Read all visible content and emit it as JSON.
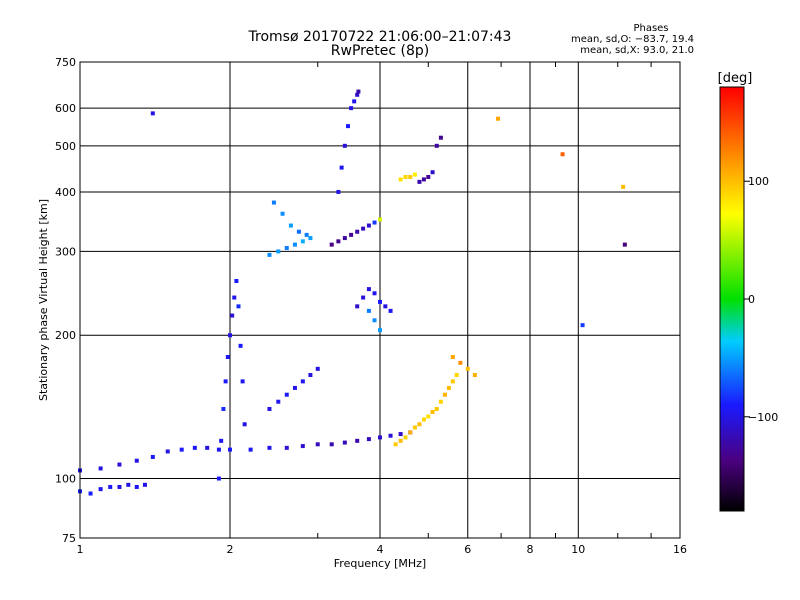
{
  "title_line1": "Tromsø 20170722 21:06:00–21:07:43",
  "title_line2": "RwPretec (8p)",
  "phases": {
    "heading": "Phases",
    "line_o": "mean, sd,O: −83.7, 19.4",
    "line_x": "mean, sd,X:  93.0, 21.0"
  },
  "chart_data": {
    "type": "scatter",
    "xlabel": "Frequency [MHz]",
    "ylabel": "Stationary phase Virtual Height [km]",
    "xscale": "log",
    "yscale": "log",
    "xlim": [
      1,
      16
    ],
    "ylim": [
      75,
      750
    ],
    "xticks": [
      1,
      2,
      4,
      6,
      8,
      10,
      16
    ],
    "xtick_labels": [
      "1",
      "2",
      "4",
      "6",
      "8",
      "10",
      "16"
    ],
    "yticks": [
      75,
      100,
      200,
      300,
      400,
      500,
      600,
      750
    ],
    "ytick_labels": [
      "75",
      "100",
      "200",
      "300",
      "400",
      "500",
      "600",
      "750"
    ],
    "grid": true,
    "colorbar": {
      "label": "[deg]",
      "range": [
        -180,
        180
      ],
      "ticks": [
        100,
        0,
        -100
      ],
      "tick_labels": [
        "100",
        "0",
        "−100"
      ],
      "colormap": "rainbow"
    },
    "series": [
      {
        "x": [
          1.0,
          1.1,
          1.2,
          1.3,
          1.4,
          1.5,
          1.6,
          1.7,
          1.8,
          1.9,
          2.0,
          2.2,
          2.4,
          2.6,
          2.8,
          3.0,
          3.2,
          3.4,
          3.6,
          3.8,
          4.0,
          4.2,
          4.4,
          4.6
        ],
        "y": [
          104,
          105,
          107,
          109,
          111,
          114,
          115,
          116,
          116,
          115,
          115,
          115,
          116,
          116,
          117,
          118,
          118,
          119,
          120,
          121,
          122,
          123,
          124,
          125
        ],
        "phase": [
          -100,
          -100,
          -105,
          -100,
          -95,
          -100,
          -90,
          -95,
          -100,
          -95,
          -90,
          -95,
          -100,
          -105,
          -110,
          -115,
          -120,
          -115,
          -120,
          -115,
          -110,
          -105,
          -110,
          -100
        ]
      },
      {
        "x": [
          1.0,
          1.05,
          1.1,
          1.15,
          1.2,
          1.25,
          1.3,
          1.35
        ],
        "y": [
          94,
          93,
          95,
          96,
          96,
          97,
          96,
          97
        ],
        "phase": [
          -85,
          -90,
          -95,
          -95,
          -100,
          -100,
          -95,
          -100
        ]
      },
      {
        "x": [
          1.9,
          1.92,
          1.94,
          1.96,
          1.98,
          2.0,
          2.02,
          2.04,
          2.06,
          2.08,
          2.1,
          2.12,
          2.14
        ],
        "y": [
          100,
          120,
          140,
          160,
          180,
          200,
          220,
          240,
          260,
          230,
          190,
          160,
          130
        ],
        "phase": [
          -90,
          -95,
          -85,
          -90,
          -95,
          -100,
          -105,
          -95,
          -90,
          -85,
          -90,
          -95,
          -100
        ]
      },
      {
        "x": [
          2.4,
          2.5,
          2.6,
          2.7,
          2.8,
          2.9,
          2.45,
          2.55,
          2.65,
          2.75,
          2.85
        ],
        "y": [
          295,
          300,
          305,
          310,
          315,
          320,
          380,
          360,
          340,
          330,
          325
        ],
        "phase": [
          -55,
          -50,
          -60,
          -55,
          -45,
          -50,
          -60,
          -55,
          -50,
          -65,
          -60
        ]
      },
      {
        "x": [
          2.4,
          2.5,
          2.6,
          2.7,
          2.8,
          2.9,
          3.0
        ],
        "y": [
          140,
          145,
          150,
          155,
          160,
          165,
          170
        ],
        "phase": [
          -100,
          -95,
          -90,
          -100,
          -95,
          -105,
          -100
        ]
      },
      {
        "x": [
          3.2,
          3.3,
          3.4,
          3.5,
          3.6,
          3.7,
          3.8,
          3.9,
          4.0
        ],
        "y": [
          310,
          315,
          320,
          325,
          330,
          335,
          340,
          345,
          350
        ],
        "phase": [
          -135,
          -130,
          -125,
          -130,
          -120,
          -115,
          -110,
          -80,
          60
        ]
      },
      {
        "x": [
          3.3,
          3.35,
          3.4,
          3.45,
          3.5,
          3.55,
          3.6,
          3.62
        ],
        "y": [
          400,
          450,
          500,
          550,
          600,
          620,
          640,
          650
        ],
        "phase": [
          -100,
          -95,
          -105,
          -90,
          -100,
          -95,
          -110,
          -120
        ]
      },
      {
        "x": [
          3.6,
          3.7,
          3.8,
          3.9,
          4.0,
          4.1,
          4.2
        ],
        "y": [
          230,
          240,
          250,
          245,
          235,
          230,
          225
        ],
        "phase": [
          -110,
          -105,
          -100,
          -95,
          -90,
          -100,
          -95
        ]
      },
      {
        "x": [
          3.8,
          3.9,
          4.0
        ],
        "y": [
          225,
          215,
          205
        ],
        "phase": [
          -60,
          -55,
          -50
        ]
      },
      {
        "x": [
          4.3,
          4.4,
          4.5,
          4.6,
          4.7,
          4.8,
          4.9,
          5.0,
          5.1,
          5.2,
          5.3,
          5.4,
          5.5,
          5.6,
          5.7
        ],
        "y": [
          118,
          120,
          122,
          125,
          128,
          130,
          133,
          135,
          138,
          140,
          145,
          150,
          155,
          160,
          165
        ],
        "phase": [
          95,
          100,
          90,
          105,
          95,
          100,
          90,
          85,
          100,
          95,
          90,
          105,
          100,
          95,
          90
        ]
      },
      {
        "x": [
          4.4,
          4.5,
          4.6,
          4.7
        ],
        "y": [
          425,
          430,
          430,
          435
        ],
        "phase": [
          85,
          90,
          95,
          80
        ]
      },
      {
        "x": [
          4.8,
          4.9,
          5.0,
          5.1,
          5.2,
          5.3
        ],
        "y": [
          420,
          425,
          430,
          440,
          500,
          520
        ],
        "phase": [
          -120,
          -125,
          -130,
          -110,
          -125,
          -130
        ]
      },
      {
        "x": [
          1.4,
          6.9,
          9.3,
          10.2,
          12.3,
          12.4
        ],
        "y": [
          585,
          570,
          480,
          210,
          410,
          310
        ],
        "phase": [
          -100,
          110,
          140,
          -80,
          100,
          -140
        ]
      },
      {
        "x": [
          5.6,
          5.8,
          6.0,
          6.2
        ],
        "y": [
          180,
          175,
          170,
          165
        ],
        "phase": [
          110,
          120,
          100,
          105
        ]
      }
    ]
  }
}
